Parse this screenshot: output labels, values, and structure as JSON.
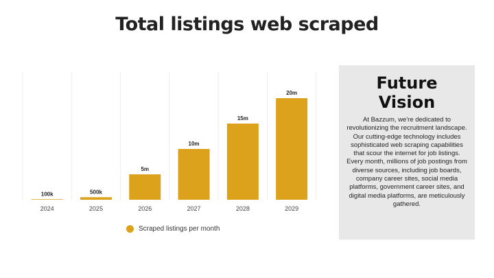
{
  "title": "Total listings web scraped",
  "chart_data": {
    "type": "bar",
    "categories": [
      "2024",
      "2025",
      "2026",
      "2027",
      "2028",
      "2029"
    ],
    "values": [
      0.1,
      0.5,
      5,
      10,
      15,
      20
    ],
    "data_labels": [
      "100k",
      "500k",
      "5m",
      "10m",
      "15m",
      "20m"
    ],
    "series": [
      {
        "name": "Scraped listings per month",
        "values": [
          0.1,
          0.5,
          5,
          10,
          15,
          20
        ]
      }
    ],
    "ylim": [
      0,
      20
    ],
    "grid": "vertical",
    "legend": "bottom",
    "bar_color": "#dca21b"
  },
  "legend_label": "Scraped listings per month",
  "panel": {
    "heading": "Future Vision",
    "body": "At Bazzum, we're dedicated to revolutionizing the recruitment landscape. Our cutting-edge technology includes sophisticated web scraping capabilities that scour the internet for job listings. Every month, millions of job postings from diverse sources, including job boards, company career sites, social media platforms, government career sites, and digital media platforms, are meticulously gathered."
  },
  "colors": {
    "accent": "#dca21b",
    "panel_bg": "#e8e8e8",
    "text": "#222222"
  }
}
